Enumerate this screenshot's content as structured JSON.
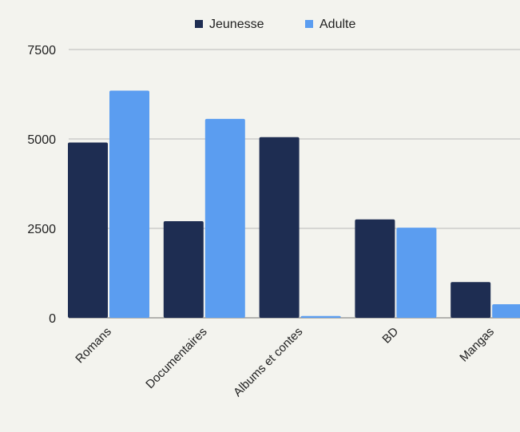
{
  "chart_data": {
    "type": "bar",
    "title": "",
    "xlabel": "",
    "ylabel": "",
    "categories": [
      "Romans",
      "Documentaires",
      "Albums et contes",
      "BD",
      "Mangas"
    ],
    "series": [
      {
        "name": "Jeunesse",
        "color": "#1e2d52",
        "values": [
          4900,
          2700,
          5050,
          2750,
          1000
        ]
      },
      {
        "name": "Adulte",
        "color": "#5b9df0",
        "values": [
          6350,
          5560,
          50,
          2520,
          380
        ]
      }
    ],
    "ylim": [
      0,
      7500
    ],
    "yticks": [
      0,
      2500,
      5000,
      7500
    ],
    "ytick_labels": [
      "0",
      "2500",
      "5000",
      "7500"
    ],
    "grid": true,
    "legend_position": "top-center"
  }
}
